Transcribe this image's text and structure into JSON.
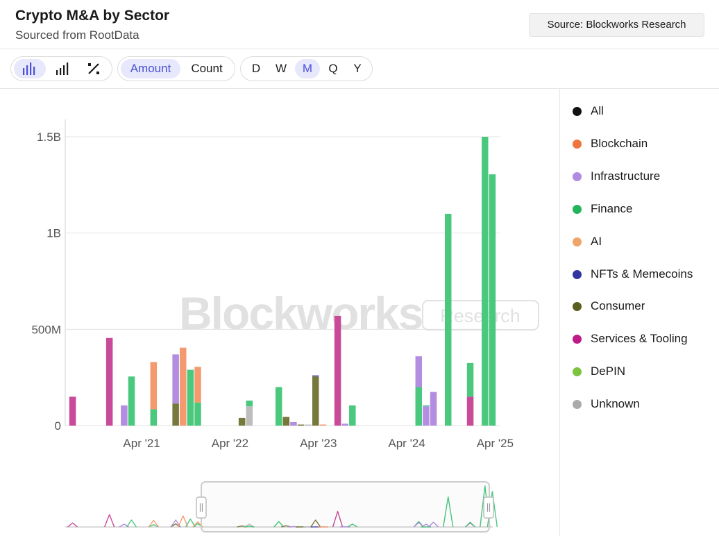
{
  "header": {
    "title": "Crypto M&A by Sector",
    "subtitle": "Sourced from RootData",
    "source_badge": "Source: Blockworks Research"
  },
  "toolbar": {
    "chart_type_buttons": [
      {
        "icon": "bar-chart-icon",
        "active": true
      },
      {
        "icon": "stacked-bar-icon",
        "active": false
      },
      {
        "icon": "percent-icon",
        "active": false
      }
    ],
    "metric_buttons": [
      {
        "label": "Amount",
        "active": true
      },
      {
        "label": "Count",
        "active": false
      }
    ],
    "interval_buttons": [
      {
        "label": "D",
        "active": false
      },
      {
        "label": "W",
        "active": false
      },
      {
        "label": "M",
        "active": true
      },
      {
        "label": "Q",
        "active": false
      },
      {
        "label": "Y",
        "active": false
      }
    ]
  },
  "watermark": {
    "main": "Blockworks",
    "badge": "Research"
  },
  "legend": [
    {
      "label": "All",
      "color": "#111111"
    },
    {
      "label": "Blockchain",
      "color": "#f0743e"
    },
    {
      "label": "Infrastructure",
      "color": "#b28ae0"
    },
    {
      "label": "Finance",
      "color": "#22b45a"
    },
    {
      "label": "AI",
      "color": "#eea46a"
    },
    {
      "label": "NFTs & Memecoins",
      "color": "#3236a0"
    },
    {
      "label": "Consumer",
      "color": "#5a5e1e"
    },
    {
      "label": "Services & Tooling",
      "color": "#bd1a8a"
    },
    {
      "label": "DePIN",
      "color": "#7cc440"
    },
    {
      "label": "Unknown",
      "color": "#aaaaaa"
    }
  ],
  "chart_data": {
    "type": "bar",
    "stacked": true,
    "x_unit": "month",
    "ylim": [
      0,
      1500
    ],
    "y_ticks": [
      0,
      500,
      1000,
      1500
    ],
    "y_tick_labels": [
      "0",
      "500M",
      "1B",
      "1.5B"
    ],
    "x_ticks": [
      "2021-04",
      "2022-04",
      "2023-04",
      "2024-04",
      "2025-04"
    ],
    "x_tick_labels": [
      "Apr '21",
      "Apr '22",
      "Apr '23",
      "Apr '24",
      "Apr '25"
    ],
    "x_range": [
      "2020-06",
      "2025-05"
    ],
    "colors": {
      "Infrastructure": "#b38ee0",
      "Finance": "#4ac87e",
      "AI": "#f49a6e",
      "Consumer": "#76783c",
      "Services & Tooling": "#c84a98",
      "NFTs & Memecoins": "#5a5eb8",
      "Unknown": "#bdbdbd"
    },
    "bars": [
      {
        "month": "2020-07",
        "segments": [
          {
            "series": "Services & Tooling",
            "value": 150
          }
        ]
      },
      {
        "month": "2020-12",
        "segments": [
          {
            "series": "Services & Tooling",
            "value": 455
          }
        ]
      },
      {
        "month": "2021-02",
        "segments": [
          {
            "series": "Infrastructure",
            "value": 105
          }
        ]
      },
      {
        "month": "2021-03",
        "segments": [
          {
            "series": "Finance",
            "value": 255
          }
        ]
      },
      {
        "month": "2021-06",
        "segments": [
          {
            "series": "Finance",
            "value": 85
          },
          {
            "series": "AI",
            "value": 245
          }
        ]
      },
      {
        "month": "2021-09",
        "segments": [
          {
            "series": "Consumer",
            "value": 115
          },
          {
            "series": "Infrastructure",
            "value": 255
          }
        ]
      },
      {
        "month": "2021-10",
        "segments": [
          {
            "series": "AI",
            "value": 405
          }
        ]
      },
      {
        "month": "2021-11",
        "segments": [
          {
            "series": "Finance",
            "value": 290
          }
        ]
      },
      {
        "month": "2021-12",
        "segments": [
          {
            "series": "Finance",
            "value": 120
          },
          {
            "series": "AI",
            "value": 185
          }
        ]
      },
      {
        "month": "2022-06",
        "segments": [
          {
            "series": "Consumer",
            "value": 40
          }
        ]
      },
      {
        "month": "2022-07",
        "segments": [
          {
            "series": "Unknown",
            "value": 100
          },
          {
            "series": "Finance",
            "value": 30
          }
        ]
      },
      {
        "month": "2022-11",
        "segments": [
          {
            "series": "Finance",
            "value": 200
          }
        ]
      },
      {
        "month": "2022-12",
        "segments": [
          {
            "series": "Consumer",
            "value": 45
          }
        ]
      },
      {
        "month": "2023-01",
        "segments": [
          {
            "series": "Infrastructure",
            "value": 18
          }
        ]
      },
      {
        "month": "2023-02",
        "segments": [
          {
            "series": "Consumer",
            "value": 5
          }
        ]
      },
      {
        "month": "2023-03",
        "segments": [
          {
            "series": "Unknown",
            "value": 3
          }
        ]
      },
      {
        "month": "2023-04",
        "segments": [
          {
            "series": "Consumer",
            "value": 255
          },
          {
            "series": "NFTs & Memecoins",
            "value": 6
          }
        ]
      },
      {
        "month": "2023-05",
        "segments": [
          {
            "series": "AI",
            "value": 5
          }
        ]
      },
      {
        "month": "2023-07",
        "segments": [
          {
            "series": "Services & Tooling",
            "value": 570
          }
        ]
      },
      {
        "month": "2023-08",
        "segments": [
          {
            "series": "Infrastructure",
            "value": 10
          }
        ]
      },
      {
        "month": "2023-09",
        "segments": [
          {
            "series": "Finance",
            "value": 105
          }
        ]
      },
      {
        "month": "2024-06",
        "segments": [
          {
            "series": "Finance",
            "value": 200
          },
          {
            "series": "Infrastructure",
            "value": 160
          }
        ]
      },
      {
        "month": "2024-07",
        "segments": [
          {
            "series": "Infrastructure",
            "value": 100
          },
          {
            "series": "Finance",
            "value": 5
          }
        ]
      },
      {
        "month": "2024-08",
        "segments": [
          {
            "series": "Infrastructure",
            "value": 175
          }
        ]
      },
      {
        "month": "2024-10",
        "segments": [
          {
            "series": "Finance",
            "value": 1100
          }
        ]
      },
      {
        "month": "2025-01",
        "segments": [
          {
            "series": "Services & Tooling",
            "value": 150
          },
          {
            "series": "Finance",
            "value": 175
          }
        ]
      },
      {
        "month": "2025-03",
        "segments": [
          {
            "series": "Finance",
            "value": 1500
          }
        ]
      },
      {
        "month": "2025-04",
        "segments": [
          {
            "series": "Finance",
            "value": 1305
          }
        ]
      }
    ]
  }
}
